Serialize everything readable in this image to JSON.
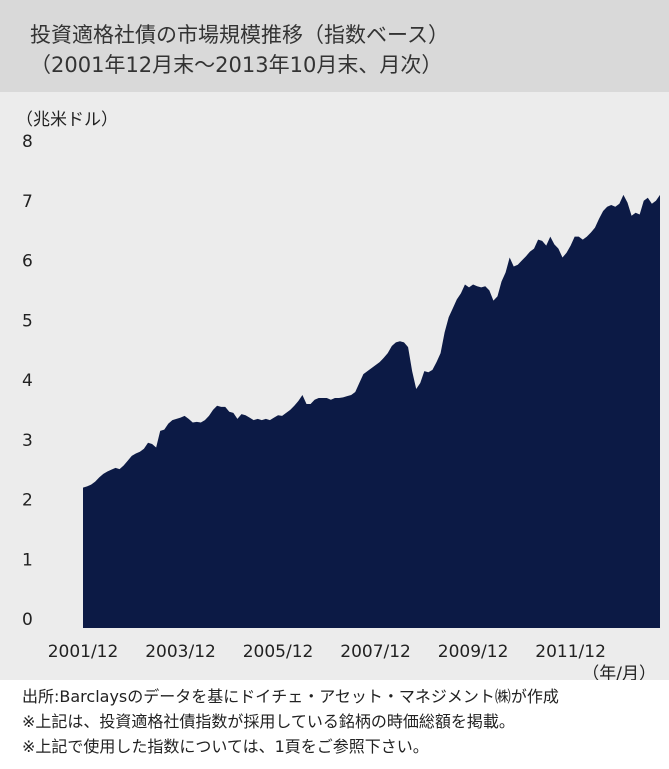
{
  "chart_data": {
    "type": "area",
    "title": "投資適格社債の市場規模推移（指数ベース）",
    "subtitle": "（2001年12月末～2013年10月末、月次）",
    "y_label": "（兆米ドル）",
    "x_label": "（年/月）",
    "notes": [
      "出所:Barclaysのデータを基にドイチェ・アセット・マネジメント㈱が作成",
      "※上記は、投資適格社債指数が採用している銘柄の時価総額を掲載。",
      "※上記で使用した指数については、1頁をご参照下さい。"
    ],
    "color": "#0c1a45",
    "ylim": [
      0,
      8
    ],
    "yticks": [
      0,
      1,
      2,
      3,
      4,
      5,
      6,
      7,
      8
    ],
    "categories": [
      "2001/12",
      null,
      null,
      null,
      null,
      null,
      null,
      null,
      null,
      null,
      null,
      null,
      null,
      null,
      null,
      null,
      null,
      null,
      null,
      null,
      null,
      null,
      null,
      null,
      "2003/12",
      null,
      null,
      null,
      null,
      null,
      null,
      null,
      null,
      null,
      null,
      null,
      null,
      null,
      null,
      null,
      null,
      null,
      null,
      null,
      null,
      null,
      null,
      null,
      "2005/12",
      null,
      null,
      null,
      null,
      null,
      null,
      null,
      null,
      null,
      null,
      null,
      null,
      null,
      null,
      null,
      null,
      null,
      null,
      null,
      null,
      null,
      null,
      null,
      "2007/12",
      null,
      null,
      null,
      null,
      null,
      null,
      null,
      null,
      null,
      null,
      null,
      null,
      null,
      null,
      null,
      null,
      null,
      null,
      null,
      null,
      null,
      null,
      null,
      "2009/12",
      null,
      null,
      null,
      null,
      null,
      null,
      null,
      null,
      null,
      null,
      null,
      null,
      null,
      null,
      null,
      null,
      null,
      null,
      null,
      null,
      null,
      null,
      null,
      "2011/12",
      null,
      null,
      null,
      null,
      null,
      null,
      null,
      null,
      null,
      null,
      null,
      null,
      null,
      null,
      null,
      null,
      null,
      null,
      null,
      null,
      null,
      null
    ],
    "values": [
      2.35,
      2.37,
      2.4,
      2.45,
      2.52,
      2.58,
      2.62,
      2.65,
      2.68,
      2.66,
      2.72,
      2.8,
      2.88,
      2.92,
      2.95,
      3.0,
      3.1,
      3.08,
      3.02,
      3.3,
      3.32,
      3.42,
      3.48,
      3.5,
      3.52,
      3.55,
      3.5,
      3.44,
      3.45,
      3.44,
      3.48,
      3.55,
      3.65,
      3.72,
      3.7,
      3.7,
      3.62,
      3.6,
      3.5,
      3.58,
      3.56,
      3.52,
      3.48,
      3.5,
      3.48,
      3.5,
      3.48,
      3.52,
      3.56,
      3.55,
      3.6,
      3.65,
      3.72,
      3.8,
      3.9,
      3.75,
      3.75,
      3.82,
      3.85,
      3.85,
      3.85,
      3.82,
      3.85,
      3.85,
      3.86,
      3.88,
      3.9,
      3.95,
      4.1,
      4.25,
      4.3,
      4.35,
      4.4,
      4.45,
      4.52,
      4.6,
      4.72,
      4.78,
      4.8,
      4.78,
      4.7,
      4.3,
      4.0,
      4.1,
      4.3,
      4.28,
      4.32,
      4.45,
      4.6,
      4.95,
      5.2,
      5.35,
      5.5,
      5.6,
      5.75,
      5.7,
      5.75,
      5.72,
      5.7,
      5.72,
      5.65,
      5.48,
      5.55,
      5.8,
      5.95,
      6.2,
      6.05,
      6.08,
      6.15,
      6.22,
      6.3,
      6.35,
      6.5,
      6.48,
      6.4,
      6.55,
      6.42,
      6.35,
      6.2,
      6.28,
      6.4,
      6.55,
      6.55,
      6.5,
      6.55,
      6.62,
      6.7,
      6.85,
      6.98,
      7.05,
      7.08,
      7.05,
      7.1,
      7.25,
      7.12,
      6.9,
      6.95,
      6.92,
      7.15,
      7.2,
      7.1,
      7.15,
      7.25
    ]
  }
}
